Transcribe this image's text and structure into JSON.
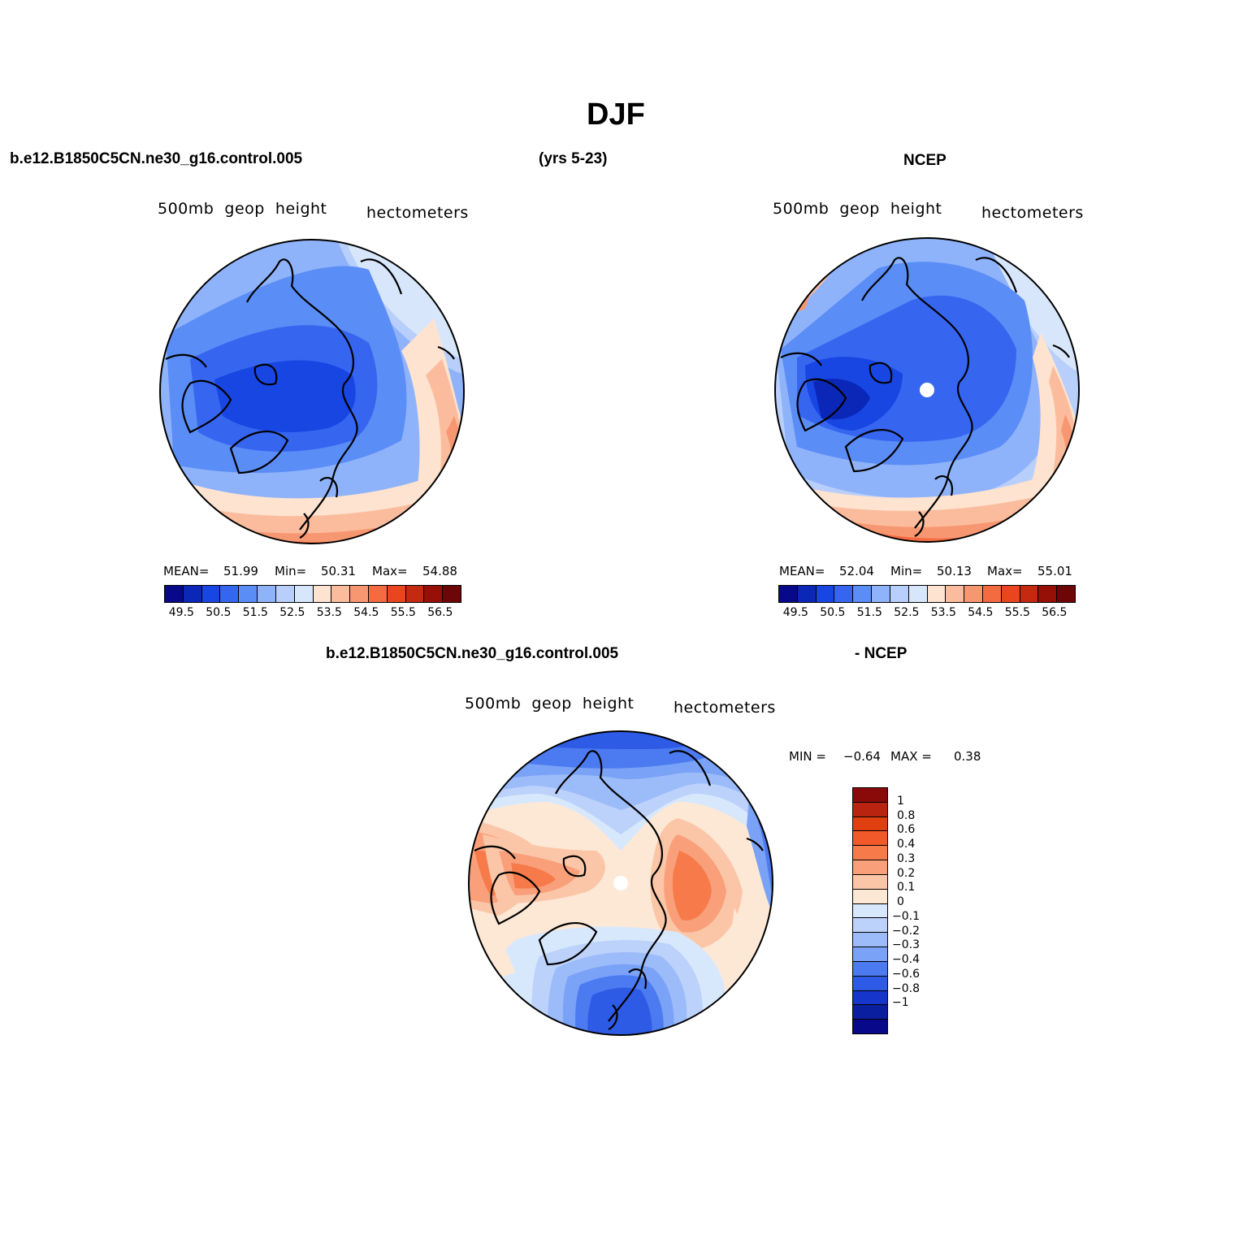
{
  "title": "DJF",
  "header": {
    "case_name": "b.e12.B1850C5CN.ne30_g16.control.005",
    "years": "(yrs 5-23)",
    "obs_name": "NCEP",
    "diff_case": "b.e12.B1850C5CN.ne30_g16.control.005",
    "diff_obs": "- NCEP"
  },
  "panels": [
    {
      "variable": "500mb  geop  height",
      "units": "hectometers",
      "mean_label": "MEAN=",
      "mean": "51.99",
      "min_label": "Min=",
      "min": "50.31",
      "max_label": "Max=",
      "max": "54.88"
    },
    {
      "variable": "500mb  geop  height",
      "units": "hectometers",
      "mean_label": "MEAN=",
      "mean": "52.04",
      "min_label": "Min=",
      "min": "50.13",
      "max_label": "Max=",
      "max": "55.01"
    }
  ],
  "diff_panel": {
    "variable": "500mb  geop  height",
    "units": "hectometers",
    "min_label": "MIN =",
    "min": "−0.64",
    "max_label": "MAX =",
    "max": "0.38"
  },
  "colorbar": {
    "colors": [
      "#08088a",
      "#0a27b8",
      "#1846e3",
      "#3666f0",
      "#5b8df6",
      "#8fb3fa",
      "#b8cffb",
      "#d7e6fb",
      "#fde3d0",
      "#fbbc9e",
      "#f79771",
      "#f46b40",
      "#e9451f",
      "#c52a10",
      "#961008",
      "#6d0606"
    ],
    "labels": [
      "49.5",
      "50.5",
      "51.5",
      "52.5",
      "53.5",
      "54.5",
      "55.5",
      "56.5"
    ]
  },
  "diff_colorbar": {
    "colors": [
      "#8a0a0a",
      "#b82410",
      "#e0400f",
      "#f2592a",
      "#f67a4a",
      "#f9a07b",
      "#fbc6a8",
      "#fde8d6",
      "#d8e8fc",
      "#bcd2fb",
      "#9cbbf9",
      "#7aa2f6",
      "#4c7af0",
      "#2d5be6",
      "#1636cb",
      "#0a1ea0",
      "#08088a"
    ],
    "labels": [
      "1",
      "0.8",
      "0.6",
      "0.4",
      "0.3",
      "0.2",
      "0.1",
      "0",
      "−0.1",
      "−0.2",
      "−0.3",
      "−0.4",
      "−0.6",
      "−0.8",
      "−1"
    ]
  }
}
